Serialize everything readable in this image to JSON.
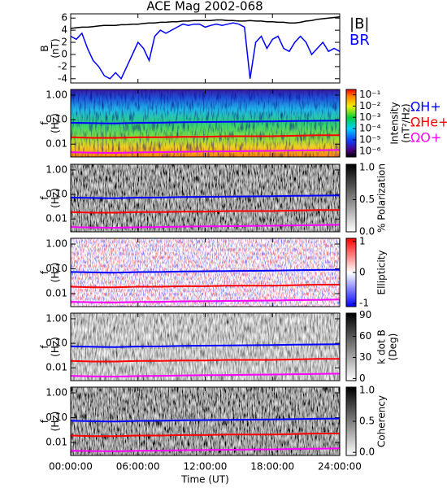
{
  "title": "ACE Mag 2002-068",
  "time_axis": {
    "label": "Time (UT)",
    "xlim": [
      0,
      24
    ],
    "xticks": [
      {
        "value": 0,
        "label": "00:00:00"
      },
      {
        "value": 6,
        "label": "06:00:00"
      },
      {
        "value": 12,
        "label": "12:00:00"
      },
      {
        "value": 18,
        "label": "18:00:00"
      },
      {
        "value": 24,
        "label": "24:00:00"
      }
    ]
  },
  "chart_data": [
    {
      "type": "line",
      "y_label": [
        "B",
        "(nT)"
      ],
      "ylim": [
        -4.7,
        6.7
      ],
      "yticks": [
        -4,
        -2,
        0,
        2,
        4,
        6
      ],
      "x": [
        0,
        0.5,
        1,
        1.5,
        2,
        2.5,
        3,
        3.5,
        4,
        4.5,
        5,
        5.5,
        6,
        6.5,
        7,
        7.5,
        8,
        8.5,
        9,
        9.5,
        10,
        10.5,
        11,
        11.5,
        12,
        12.5,
        13,
        13.5,
        14,
        14.5,
        15,
        15.5,
        16,
        16.5,
        17,
        17.5,
        18,
        18.5,
        19,
        19.5,
        20,
        20.5,
        21,
        21.5,
        22,
        22.5,
        23,
        23.5,
        24
      ],
      "series": [
        {
          "name": "|B|",
          "color": "#000000",
          "values": [
            4.3,
            4.4,
            4.5,
            4.5,
            4.6,
            4.7,
            4.8,
            4.8,
            4.8,
            4.9,
            4.9,
            5.0,
            5.0,
            5.1,
            5.2,
            5.2,
            5.3,
            5.3,
            5.4,
            5.4,
            5.5,
            5.5,
            5.6,
            5.6,
            5.6,
            5.6,
            5.7,
            5.7,
            5.6,
            5.6,
            5.5,
            5.5,
            5.6,
            5.5,
            5.5,
            5.4,
            5.4,
            5.3,
            5.3,
            5.2,
            5.2,
            5.3,
            5.5,
            5.6,
            5.8,
            5.9,
            6.0,
            6.1,
            6.2
          ]
        },
        {
          "name": "BR",
          "color": "#0000ff",
          "values": [
            3,
            2.5,
            3.5,
            1,
            -1,
            -2,
            -3.5,
            -4,
            -3,
            -4,
            -2,
            0,
            2,
            1,
            -1,
            3,
            4,
            3.5,
            4,
            4.5,
            5,
            4.8,
            5,
            5,
            4.5,
            4.8,
            5,
            4.8,
            5,
            5.2,
            5,
            4.5,
            -4,
            2,
            3,
            1,
            2.5,
            3,
            1,
            0.5,
            2,
            3,
            2,
            0,
            1,
            2,
            0.5,
            1,
            0.5
          ]
        }
      ]
    },
    {
      "type": "spectrogram",
      "y_label": [
        "f",
        "(Hz)"
      ],
      "log": true,
      "ylim": [
        0.003,
        1.7
      ],
      "yticks": [
        {
          "value": 0.01,
          "label": "0.01"
        },
        {
          "value": 0.1,
          "label": "0.10"
        },
        {
          "value": 1,
          "label": "1.00"
        }
      ],
      "colormap": "rainbow",
      "colorbar": {
        "label": [
          "Intensity",
          "(nT²/Hz)"
        ],
        "log": true,
        "lim": [
          3e-07,
          0.3
        ],
        "ticks": [
          {
            "value": 1e-06,
            "label": "10⁻⁶"
          },
          {
            "value": 1e-05,
            "label": "10⁻⁵"
          },
          {
            "value": 0.0001,
            "label": "10⁻⁴"
          },
          {
            "value": 0.001,
            "label": "10⁻³"
          },
          {
            "value": 0.01,
            "label": "10⁻²"
          },
          {
            "value": 0.1,
            "label": "10⁻¹"
          }
        ]
      },
      "x": [
        0,
        2,
        4,
        6,
        8,
        10,
        12,
        14,
        16,
        18,
        20,
        22,
        24
      ],
      "series": [
        {
          "name": "ΩH+",
          "color": "#0000ff",
          "values": [
            0.075,
            0.072,
            0.07,
            0.074,
            0.075,
            0.078,
            0.08,
            0.082,
            0.083,
            0.085,
            0.088,
            0.09,
            0.092
          ]
        },
        {
          "name": "ΩHe+",
          "color": "#ff0000",
          "values": [
            0.019,
            0.018,
            0.018,
            0.019,
            0.019,
            0.02,
            0.02,
            0.021,
            0.021,
            0.021,
            0.022,
            0.023,
            0.023
          ]
        },
        {
          "name": "ΩO+",
          "color": "#ff00ff",
          "values": [
            0.0047,
            0.0045,
            0.0044,
            0.0046,
            0.0047,
            0.0049,
            0.005,
            0.0051,
            0.0052,
            0.0053,
            0.0055,
            0.0056,
            0.0058
          ]
        }
      ]
    },
    {
      "type": "spectrogram",
      "y_label": [
        "f",
        "(Hz)"
      ],
      "log": true,
      "ylim": [
        0.003,
        1.7
      ],
      "yticks": [
        {
          "value": 0.01,
          "label": "0.01"
        },
        {
          "value": 0.1,
          "label": "0.10"
        },
        {
          "value": 1,
          "label": "1.00"
        }
      ],
      "colormap": "gray",
      "colorbar": {
        "label": [
          "% Polarization"
        ],
        "log": false,
        "lim": [
          0,
          1.05
        ],
        "ticks": [
          {
            "value": 0,
            "label": "0.0"
          },
          {
            "value": 0.5,
            "label": "0.5"
          },
          {
            "value": 1,
            "label": "1.0"
          }
        ]
      },
      "x": [
        0,
        2,
        4,
        6,
        8,
        10,
        12,
        14,
        16,
        18,
        20,
        22,
        24
      ],
      "series": [
        {
          "color": "#0000ff",
          "values": [
            0.075,
            0.072,
            0.07,
            0.074,
            0.075,
            0.078,
            0.08,
            0.082,
            0.083,
            0.085,
            0.088,
            0.09,
            0.092
          ]
        },
        {
          "color": "#ff0000",
          "values": [
            0.019,
            0.018,
            0.018,
            0.019,
            0.019,
            0.02,
            0.02,
            0.021,
            0.021,
            0.021,
            0.022,
            0.023,
            0.023
          ]
        },
        {
          "color": "#ff00ff",
          "values": [
            0.0047,
            0.0045,
            0.0044,
            0.0046,
            0.0047,
            0.0049,
            0.005,
            0.0051,
            0.0052,
            0.0053,
            0.0055,
            0.0056,
            0.0058
          ]
        }
      ]
    },
    {
      "type": "spectrogram",
      "y_label": [
        "f",
        "(Hz)"
      ],
      "log": true,
      "ylim": [
        0.003,
        1.7
      ],
      "yticks": [
        {
          "value": 0.01,
          "label": "0.01"
        },
        {
          "value": 0.1,
          "label": "0.10"
        },
        {
          "value": 1,
          "label": "1.00"
        }
      ],
      "colormap": "bwr",
      "colorbar": {
        "label": [
          "Ellipticity"
        ],
        "log": false,
        "lim": [
          -1.1,
          1.1
        ],
        "ticks": [
          -1,
          0,
          1
        ]
      },
      "x": [
        0,
        2,
        4,
        6,
        8,
        10,
        12,
        14,
        16,
        18,
        20,
        22,
        24
      ],
      "series": [
        {
          "color": "#0000ff",
          "values": [
            0.075,
            0.072,
            0.07,
            0.074,
            0.075,
            0.078,
            0.08,
            0.082,
            0.083,
            0.085,
            0.088,
            0.09,
            0.092
          ]
        },
        {
          "color": "#ff0000",
          "values": [
            0.019,
            0.018,
            0.018,
            0.019,
            0.019,
            0.02,
            0.02,
            0.021,
            0.021,
            0.021,
            0.022,
            0.023,
            0.023
          ]
        },
        {
          "color": "#ff00ff",
          "values": [
            0.0047,
            0.0045,
            0.0044,
            0.0046,
            0.0047,
            0.0049,
            0.005,
            0.0051,
            0.0052,
            0.0053,
            0.0055,
            0.0056,
            0.0058
          ]
        }
      ]
    },
    {
      "type": "spectrogram",
      "y_label": [
        "f",
        "(Hz)"
      ],
      "log": true,
      "ylim": [
        0.003,
        1.7
      ],
      "yticks": [
        {
          "value": 0.01,
          "label": "0.01"
        },
        {
          "value": 0.1,
          "label": "0.10"
        },
        {
          "value": 1,
          "label": "1.00"
        }
      ],
      "colormap": "gray_light",
      "colorbar": {
        "label": [
          "k dot B",
          "(Deg)"
        ],
        "log": false,
        "lim": [
          -3,
          93
        ],
        "ticks": [
          0,
          30,
          60,
          90
        ]
      },
      "x": [
        0,
        2,
        4,
        6,
        8,
        10,
        12,
        14,
        16,
        18,
        20,
        22,
        24
      ],
      "series": [
        {
          "color": "#0000ff",
          "values": [
            0.075,
            0.072,
            0.07,
            0.074,
            0.075,
            0.078,
            0.08,
            0.082,
            0.083,
            0.085,
            0.088,
            0.09,
            0.092
          ]
        },
        {
          "color": "#ff0000",
          "values": [
            0.019,
            0.018,
            0.018,
            0.019,
            0.019,
            0.02,
            0.02,
            0.021,
            0.021,
            0.021,
            0.022,
            0.023,
            0.023
          ]
        },
        {
          "color": "#ff00ff",
          "values": [
            0.0047,
            0.0045,
            0.0044,
            0.0046,
            0.0047,
            0.0049,
            0.005,
            0.0051,
            0.0052,
            0.0053,
            0.0055,
            0.0056,
            0.0058
          ]
        }
      ]
    },
    {
      "type": "spectrogram",
      "y_label": [
        "f",
        "(Hz)"
      ],
      "log": true,
      "ylim": [
        0.003,
        1.7
      ],
      "yticks": [
        {
          "value": 0.01,
          "label": "0.01"
        },
        {
          "value": 0.1,
          "label": "0.10"
        },
        {
          "value": 1,
          "label": "1.00"
        }
      ],
      "colormap": "gray",
      "colorbar": {
        "label": [
          "Coherency"
        ],
        "log": false,
        "lim": [
          -0.05,
          1.05
        ],
        "ticks": [
          {
            "value": 0,
            "label": "0.0"
          },
          {
            "value": 0.5,
            "label": "0.5"
          },
          {
            "value": 1,
            "label": "1.0"
          }
        ]
      },
      "x": [
        0,
        2,
        4,
        6,
        8,
        10,
        12,
        14,
        16,
        18,
        20,
        22,
        24
      ],
      "series": [
        {
          "color": "#0000ff",
          "values": [
            0.075,
            0.072,
            0.07,
            0.074,
            0.075,
            0.078,
            0.08,
            0.082,
            0.083,
            0.085,
            0.088,
            0.09,
            0.092
          ]
        },
        {
          "color": "#ff0000",
          "values": [
            0.019,
            0.018,
            0.018,
            0.019,
            0.019,
            0.02,
            0.02,
            0.021,
            0.021,
            0.021,
            0.022,
            0.023,
            0.023
          ]
        },
        {
          "color": "#ff00ff",
          "values": [
            0.0047,
            0.0045,
            0.0044,
            0.0046,
            0.0047,
            0.0049,
            0.005,
            0.0051,
            0.0052,
            0.0053,
            0.0055,
            0.0056,
            0.0058
          ]
        }
      ]
    }
  ]
}
